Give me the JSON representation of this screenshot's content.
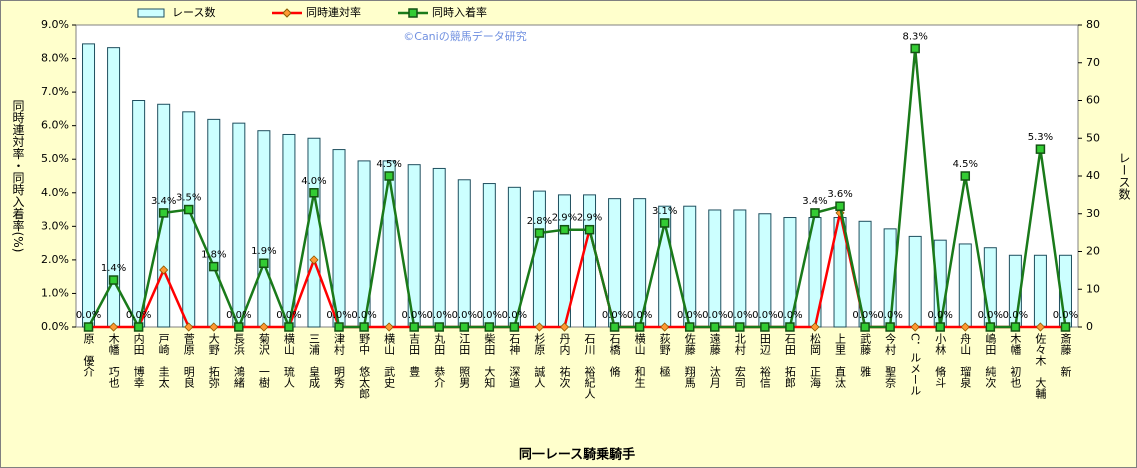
{
  "chart_data": {
    "type": "bar-line",
    "watermark": "©Caniの競馬データ研究",
    "x_label": "同一レース騎乗騎手",
    "y_label": "同時連対率・同時入着率(%)",
    "y2_label": "レース数",
    "categories": [
      "原　優介",
      "木幡　巧也",
      "内田　博幸",
      "戸崎　圭太",
      "菅原　明良",
      "大野　拓弥",
      "長浜　鴻緒",
      "菊沢　一樹",
      "横山　琉人",
      "三浦　皇成",
      "津村　明秀",
      "野中　悠太郎",
      "横山　武史",
      "吉田　豊",
      "丸田　恭介",
      "江田　照男",
      "柴田　大知",
      "石神　深道",
      "杉原　誠人",
      "丹内　祐次",
      "石川　裕紀人",
      "石橋　脩",
      "横山　和生",
      "荻野　極",
      "佐藤　翔馬",
      "遠藤　汰月",
      "北村　宏司",
      "田辺　裕信",
      "石田　拓郎",
      "松岡　正海",
      "上里　直汰",
      "武藤　雅",
      "今村　聖奈",
      "C．ルメール",
      "小林　脩斗",
      "舟山　瑠泉",
      "嶋田　純次",
      "木幡　初也",
      "佐々木　大輔",
      "斎藤　新"
    ],
    "series": [
      {
        "name": "レース数",
        "kind": "bar",
        "axis": "y2",
        "color": "#ccffff",
        "edge_color": "#1f4f5f",
        "values": [
          75,
          74,
          60,
          59,
          57,
          55,
          54,
          52,
          51,
          50,
          47,
          44,
          44,
          43,
          42,
          39,
          38,
          37,
          36,
          35,
          35,
          34,
          34,
          32,
          32,
          31,
          31,
          30,
          29,
          29,
          29,
          28,
          26,
          24,
          23,
          22,
          21,
          19,
          19,
          19
        ]
      },
      {
        "name": "同時連対率",
        "kind": "line",
        "color": "#ff0000",
        "marker_color": "#ff9933",
        "values": [
          0,
          0,
          0,
          1.7,
          0,
          0,
          0,
          0,
          0,
          2.0,
          0,
          0,
          0,
          0,
          0,
          0,
          0,
          0,
          0,
          0,
          2.9,
          0,
          0,
          0,
          0,
          0,
          0,
          0,
          0,
          0,
          3.4,
          0,
          0,
          0,
          0,
          0,
          0,
          0,
          0,
          0
        ]
      },
      {
        "name": "同時入着率",
        "kind": "line",
        "color": "#1a7a1a",
        "marker_color": "#33cc33",
        "values": [
          0,
          1.4,
          0,
          3.4,
          3.5,
          1.8,
          0,
          1.9,
          0,
          4.0,
          0,
          0,
          4.5,
          0,
          0,
          0,
          0,
          0,
          2.8,
          2.9,
          2.9,
          0,
          0,
          3.1,
          0,
          0,
          0,
          0,
          0,
          3.4,
          3.6,
          0,
          0,
          8.3,
          0,
          4.5,
          0,
          0,
          5.3,
          0
        ],
        "value_labels": [
          "0.0%",
          "1.4%",
          "0.0%",
          "3.4%",
          "3.5%",
          "1.8%",
          "0.0%",
          "1.9%",
          "0.0%",
          "4.0%",
          "0.0%",
          "0.0%",
          "4.5%",
          "0.0%",
          "0.0%",
          "0.0%",
          "0.0%",
          "0.0%",
          "2.8%",
          "2.9%",
          "2.9%",
          "0.0%",
          "0.0%",
          "3.1%",
          "0.0%",
          "0.0%",
          "0.0%",
          "0.0%",
          "0.0%",
          "3.4%",
          "3.6%",
          "0.0%",
          "0.0%",
          "8.3%",
          "0.0%",
          "4.5%",
          "0.0%",
          "0.0%",
          "5.3%",
          "0.0%"
        ]
      }
    ],
    "ylim": [
      0,
      9
    ],
    "yticks": [
      {
        "value": 0,
        "label": "0.0%"
      },
      {
        "value": 1,
        "label": "1.0%"
      },
      {
        "value": 2,
        "label": "2.0%"
      },
      {
        "value": 3,
        "label": "3.0%"
      },
      {
        "value": 4,
        "label": "4.0%"
      },
      {
        "value": 5,
        "label": "5.0%"
      },
      {
        "value": 6,
        "label": "6.0%"
      },
      {
        "value": 7,
        "label": "7.0%"
      },
      {
        "value": 8,
        "label": "8.0%"
      },
      {
        "value": 9,
        "label": "9.0%"
      }
    ],
    "y2lim": [
      0,
      80
    ],
    "y2ticks": [
      0,
      10,
      20,
      30,
      40,
      50,
      60,
      70,
      80
    ],
    "grid": false
  }
}
